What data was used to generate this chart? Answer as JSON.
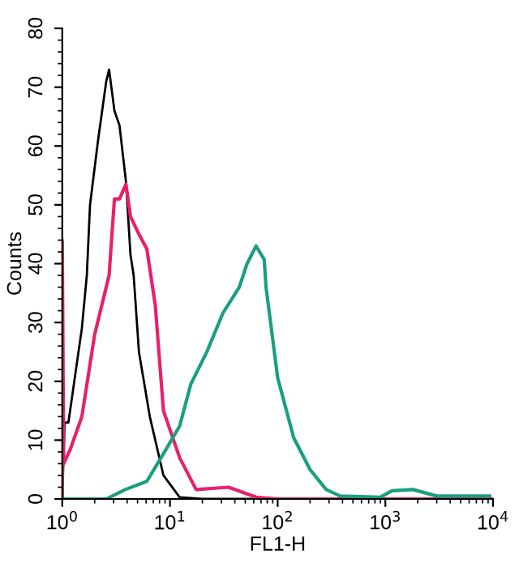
{
  "chart_data": {
    "type": "line",
    "xlabel": "FL1-H",
    "ylabel": "Counts",
    "log": "x",
    "xlim": [
      1,
      10000
    ],
    "ylim": [
      0,
      80
    ],
    "xticks": [
      {
        "value": 1,
        "label": "10$^{0}$"
      },
      {
        "value": 10,
        "label": "10$^{1}$"
      },
      {
        "value": 100,
        "label": "10$^{2}$"
      },
      {
        "value": 1000,
        "label": "10$^{3}$"
      },
      {
        "value": 10000,
        "label": "10$^{4}$"
      }
    ],
    "yticks": [
      0,
      10,
      20,
      30,
      40,
      50,
      60,
      70,
      80
    ],
    "grid": false,
    "legend": false,
    "marker": "none",
    "line_style": "solid",
    "series": [
      {
        "color": "#000000",
        "x": [
          1.0,
          1.05,
          1.14,
          1.52,
          1.69,
          1.81,
          2.15,
          2.56,
          2.72,
          3.05,
          3.4,
          3.9,
          4.3,
          4.6,
          5.15,
          6.5,
          8.7,
          12.3,
          20,
          10000
        ],
        "values": [
          0,
          13,
          13,
          29,
          38,
          50,
          61,
          71,
          73,
          66,
          63.5,
          54,
          41.5,
          38,
          25,
          14,
          4,
          0.3,
          0,
          0
        ]
      },
      {
        "color": "#e8206a",
        "x": [
          1.0,
          1.0,
          1.03,
          1.19,
          1.52,
          2.0,
          2.72,
          3.05,
          3.4,
          3.9,
          4.3,
          5.15,
          6.1,
          7.3,
          8.7,
          12.3,
          17.5,
          35,
          63,
          100,
          10000
        ],
        "values": [
          0,
          44,
          6,
          8.5,
          14,
          28,
          38,
          51,
          51,
          53.5,
          48,
          45,
          42.5,
          33,
          15,
          7,
          1.6,
          2,
          0.3,
          0,
          0
        ]
      },
      {
        "color": "#1a9e80",
        "x": [
          1.0,
          2.56,
          3.85,
          6.1,
          8.7,
          12.3,
          15.6,
          22,
          31,
          44,
          52,
          63,
          75,
          78,
          100,
          141,
          200,
          282,
          380,
          900,
          1150,
          1800,
          3000,
          9300
        ],
        "values": [
          0,
          0,
          1.6,
          3,
          7.7,
          12.4,
          19.5,
          25,
          31.6,
          36,
          40,
          43,
          40.7,
          36,
          20.6,
          10.4,
          5,
          1.6,
          0.5,
          0.3,
          1.4,
          1.6,
          0.5,
          0.5
        ]
      }
    ]
  }
}
